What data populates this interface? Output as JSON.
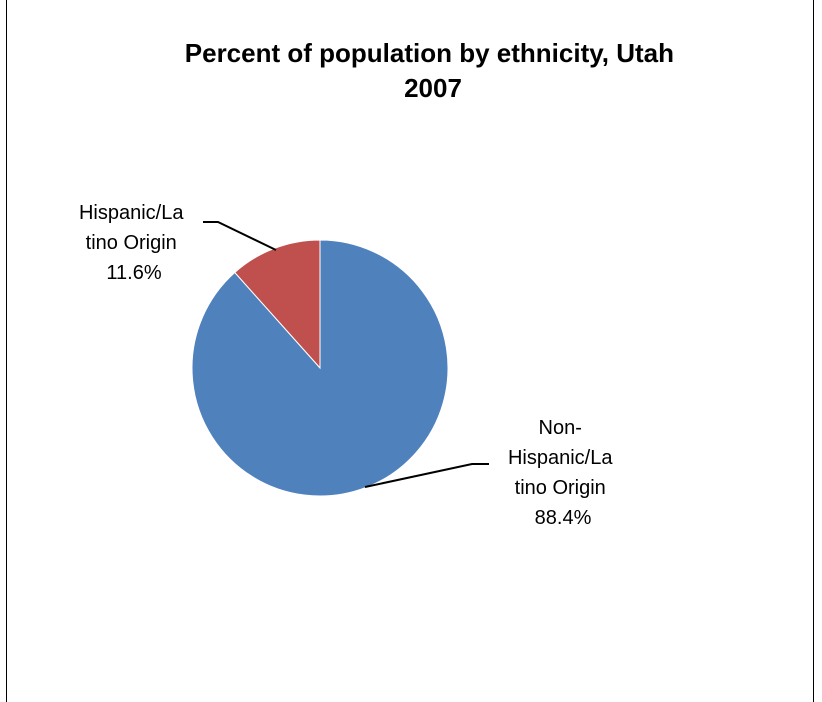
{
  "chart_data": {
    "type": "pie",
    "title_lines": [
      "Percent of population by ethnicity, Utah",
      "2007"
    ],
    "slices": [
      {
        "label_lines": [
          "Hispanic/La",
          "tino Origin"
        ],
        "value": 11.6,
        "value_label": "11.6%",
        "color": "#c0504d"
      },
      {
        "label_lines": [
          "Non-",
          "Hispanic/La",
          "tino Origin"
        ],
        "value": 88.4,
        "value_label": "88.4%",
        "color": "#4f81bd"
      }
    ],
    "start_angle_deg": 0,
    "direction": "counterclockwise",
    "legend": "none"
  },
  "colors": {
    "background": "#ffffff",
    "frame_line": "#000000",
    "leader_line": "#000000",
    "slice_border": "#ffffff"
  }
}
